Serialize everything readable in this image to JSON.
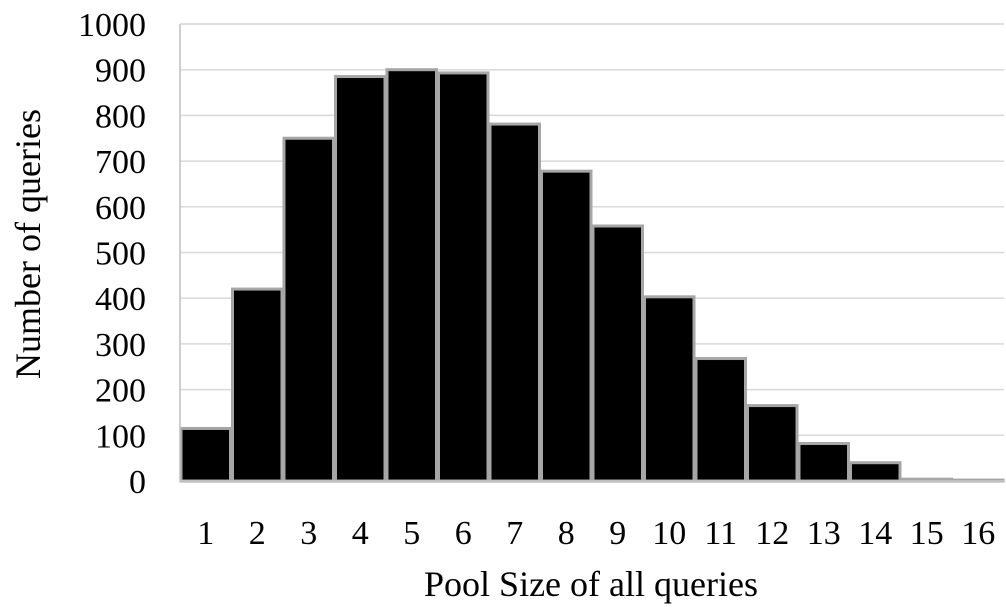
{
  "chart_data": {
    "type": "bar",
    "title": "",
    "xlabel": "Pool Size of all queries",
    "ylabel": "Number of queries",
    "categories": [
      "1",
      "2",
      "3",
      "4",
      "5",
      "6",
      "7",
      "8",
      "9",
      "10",
      "11",
      "12",
      "13",
      "14",
      "15",
      "16"
    ],
    "values": [
      115,
      420,
      750,
      885,
      900,
      893,
      781,
      678,
      558,
      403,
      268,
      165,
      82,
      40,
      4,
      2
    ],
    "ylim": [
      0,
      1000
    ],
    "yticks": [
      "0",
      "100",
      "200",
      "300",
      "400",
      "500",
      "600",
      "700",
      "800",
      "900",
      "1000"
    ],
    "grid": true,
    "legend": "none",
    "colors": {
      "bar_fill": "#000000",
      "bar_edge": "#a6a6a6",
      "grid": "#d9d9d9",
      "axis": "#bfbfbf"
    }
  }
}
